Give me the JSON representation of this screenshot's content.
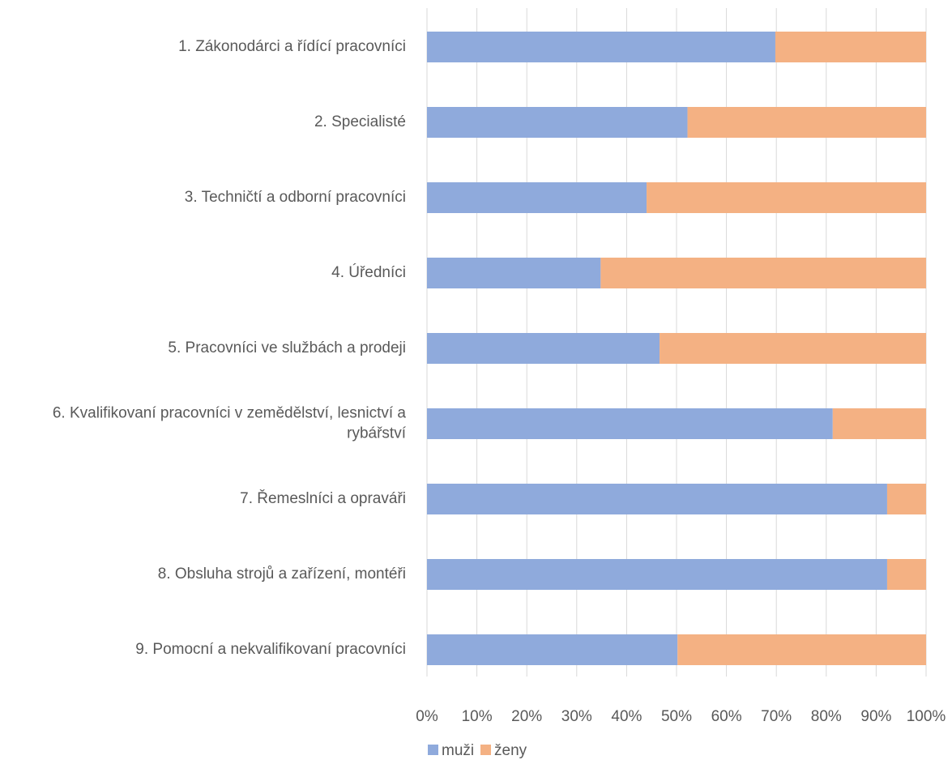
{
  "chart_data": {
    "type": "bar",
    "orientation": "horizontal",
    "stacked": "percent",
    "categories": [
      "1. Zákonodárci a řídící pracovníci",
      "2. Specialisté",
      "3. Techničtí a odborní pracovníci",
      "4. Úředníci",
      "5. Pracovníci ve službách a prodeji",
      "6. Kvalifikovaní pracovníci v zemědělství, lesnictví a rybářství",
      "7. Řemeslníci a opraváři",
      "8. Obsluha strojů a zařízení, montéři",
      "9. Pomocní a nekvalifikovaní pracovníci"
    ],
    "series": [
      {
        "name": "muži",
        "color": "#8faadc",
        "values": [
          69.8,
          52.2,
          44.0,
          34.8,
          46.6,
          81.3,
          92.2,
          92.2,
          50.2
        ]
      },
      {
        "name": "ženy",
        "color": "#f4b183",
        "values": [
          30.2,
          47.8,
          56.0,
          65.2,
          53.4,
          18.7,
          7.8,
          7.8,
          49.8
        ]
      }
    ],
    "xlim": [
      0,
      100
    ],
    "xticks": [
      "0%",
      "10%",
      "20%",
      "30%",
      "40%",
      "50%",
      "60%",
      "70%",
      "80%",
      "90%",
      "100%"
    ],
    "grid": true,
    "legend": "bottom",
    "title": "",
    "xlabel": "",
    "ylabel": ""
  }
}
